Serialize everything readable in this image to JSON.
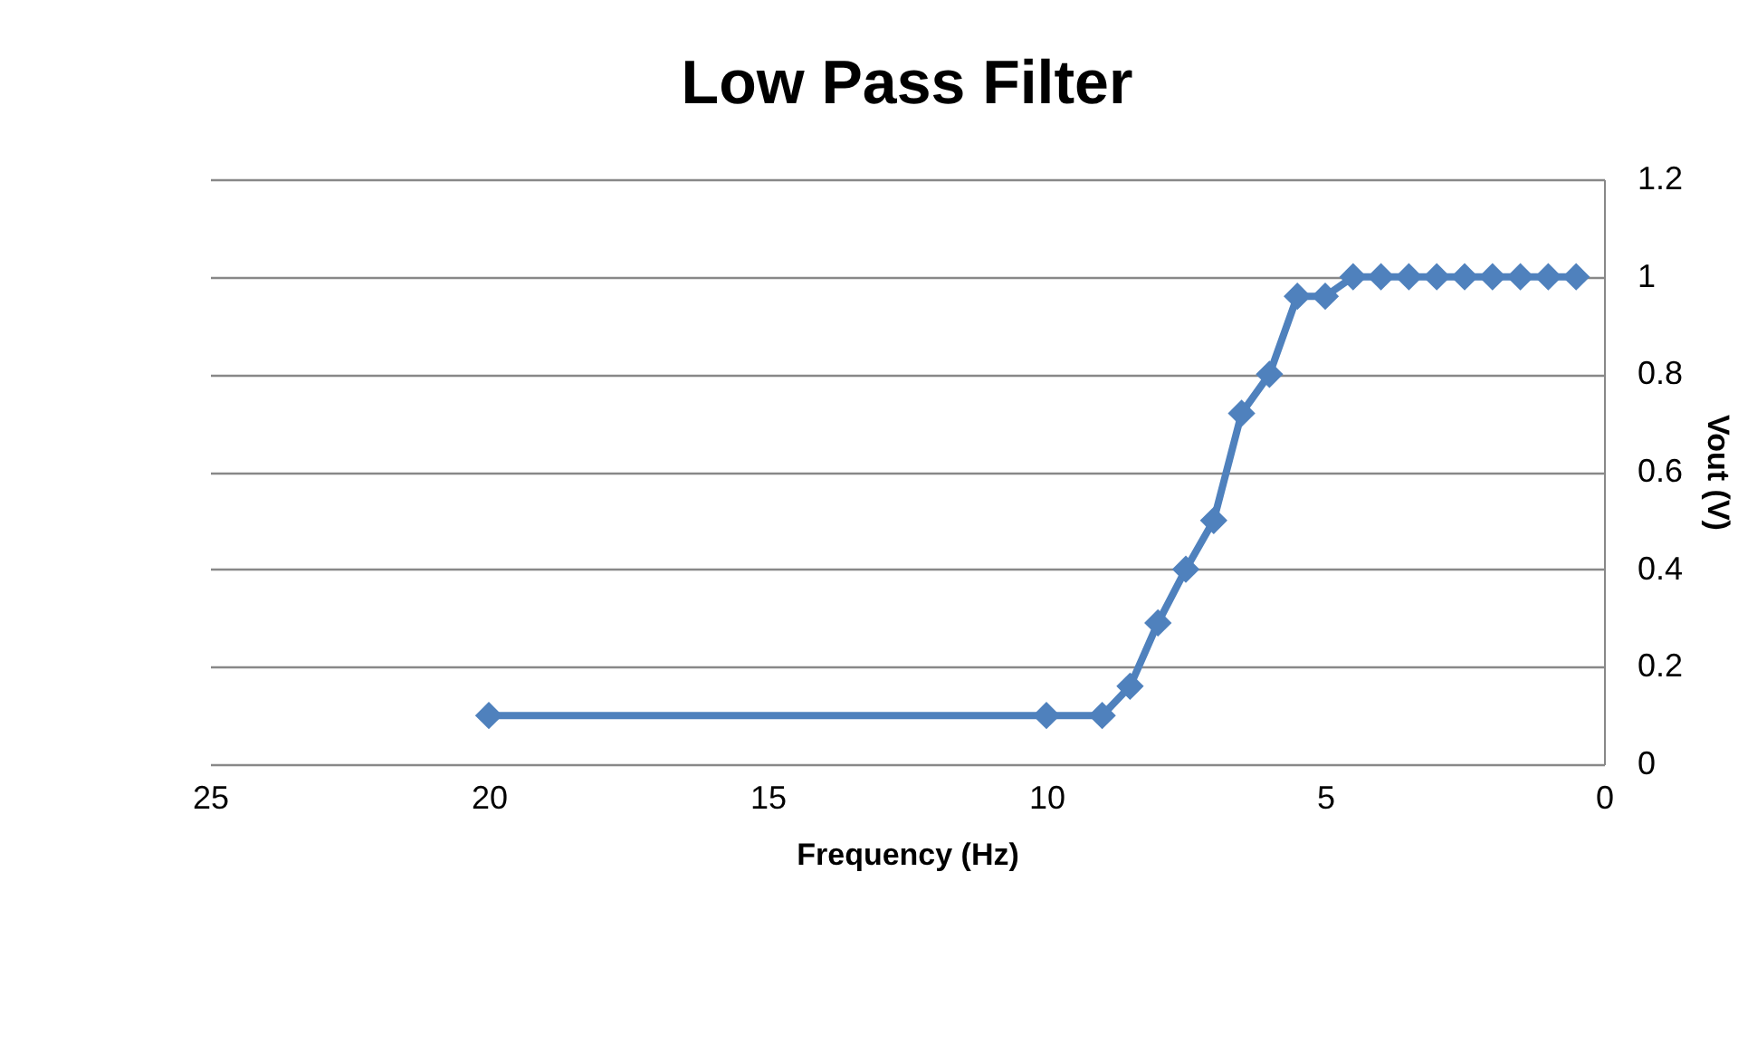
{
  "chart_data": {
    "type": "line",
    "title": "Low Pass Filter",
    "xlabel": "Frequency (Hz)",
    "ylabel": "Vout (V)",
    "x": [
      20,
      10,
      9,
      8.5,
      8,
      7.5,
      7,
      6.5,
      6,
      5.5,
      5,
      4.5,
      4,
      3.5,
      3,
      2.5,
      2,
      1.5,
      1,
      0.5
    ],
    "series": [
      {
        "color": "#4f81bd",
        "values": [
          0.1,
          0.1,
          0.1,
          0.16,
          0.29,
          0.4,
          0.5,
          0.72,
          0.8,
          0.96,
          0.96,
          1,
          1,
          1,
          1,
          1,
          1,
          1,
          1,
          1
        ]
      }
    ],
    "xlim": [
      25,
      0
    ],
    "xticks": [
      25,
      20,
      15,
      10,
      5,
      0
    ],
    "ylim": [
      0,
      1.2
    ],
    "yticks": [
      0,
      0.2,
      0.4,
      0.6,
      0.8,
      1,
      1.2
    ],
    "grid": "y",
    "marker": "diamond",
    "line_style": "solid"
  }
}
